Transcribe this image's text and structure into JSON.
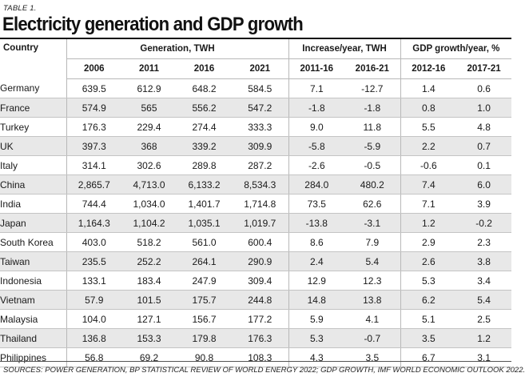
{
  "table_label": "TABLE 1.",
  "title": "Electricity generation and GDP growth",
  "headers": {
    "country": "Country",
    "group_generation": "Generation, TWH",
    "group_increase": "Increase/year, TWH",
    "group_gdp": "GDP growth/year, %",
    "columns": [
      "2006",
      "2011",
      "2016",
      "2021",
      "2011-16",
      "2016-21",
      "2012-16",
      "2017-21"
    ]
  },
  "rows": [
    {
      "country": "Germany",
      "values": [
        "639.5",
        "612.9",
        "648.2",
        "584.5",
        "7.1",
        "-12.7",
        "1.4",
        "0.6"
      ]
    },
    {
      "country": "France",
      "values": [
        "574.9",
        "565",
        "556.2",
        "547.2",
        "-1.8",
        "-1.8",
        "0.8",
        "1.0"
      ]
    },
    {
      "country": "Turkey",
      "values": [
        "176.3",
        "229.4",
        "274.4",
        "333.3",
        "9.0",
        "11.8",
        "5.5",
        "4.8"
      ]
    },
    {
      "country": "UK",
      "values": [
        "397.3",
        "368",
        "339.2",
        "309.9",
        "-5.8",
        "-5.9",
        "2.2",
        "0.7"
      ]
    },
    {
      "country": "Italy",
      "values": [
        "314.1",
        "302.6",
        "289.8",
        "287.2",
        "-2.6",
        "-0.5",
        "-0.6",
        "0.1"
      ]
    },
    {
      "country": "China",
      "values": [
        "2,865.7",
        "4,713.0",
        "6,133.2",
        "8,534.3",
        "284.0",
        "480.2",
        "7.4",
        "6.0"
      ]
    },
    {
      "country": "India",
      "values": [
        "744.4",
        "1,034.0",
        "1,401.7",
        "1,714.8",
        "73.5",
        "62.6",
        "7.1",
        "3.9"
      ]
    },
    {
      "country": "Japan",
      "values": [
        "1,164.3",
        "1,104.2",
        "1,035.1",
        "1,019.7",
        "-13.8",
        "-3.1",
        "1.2",
        "-0.2"
      ]
    },
    {
      "country": "South Korea",
      "values": [
        "403.0",
        "518.2",
        "561.0",
        "600.4",
        "8.6",
        "7.9",
        "2.9",
        "2.3"
      ]
    },
    {
      "country": "Taiwan",
      "values": [
        "235.5",
        "252.2",
        "264.1",
        "290.9",
        "2.4",
        "5.4",
        "2.6",
        "3.8"
      ]
    },
    {
      "country": "Indonesia",
      "values": [
        "133.1",
        "183.4",
        "247.9",
        "309.4",
        "12.9",
        "12.3",
        "5.3",
        "3.4"
      ]
    },
    {
      "country": "Vietnam",
      "values": [
        "57.9",
        "101.5",
        "175.7",
        "244.8",
        "14.8",
        "13.8",
        "6.2",
        "5.4"
      ]
    },
    {
      "country": "Malaysia",
      "values": [
        "104.0",
        "127.1",
        "156.7",
        "177.2",
        "5.9",
        "4.1",
        "5.1",
        "2.5"
      ]
    },
    {
      "country": "Thailand",
      "values": [
        "136.8",
        "153.3",
        "179.8",
        "176.3",
        "5.3",
        "-0.7",
        "3.5",
        "1.2"
      ]
    },
    {
      "country": "Philippines",
      "values": [
        "56.8",
        "69.2",
        "90.8",
        "108.3",
        "4.3",
        "3.5",
        "6.7",
        "3.1"
      ]
    }
  ],
  "source": "SOURCES: POWER GENERATION, BP STATISTICAL REVIEW OF WORLD ENERGY 2022; GDP GROWTH, IMF WORLD ECONOMIC OUTLOOK 2022."
}
